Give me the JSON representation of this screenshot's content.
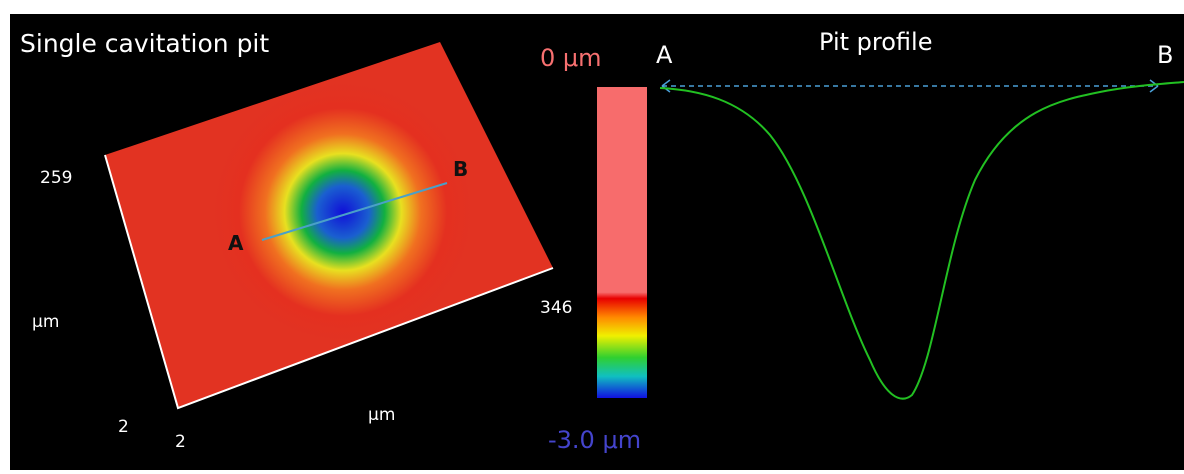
{
  "surface_panel": {
    "title": "Single cavitation pit",
    "y_max_label": "259",
    "y_unit": "μm",
    "y_min_label": "2",
    "x_min_label": "2",
    "x_unit": "μm",
    "x_max_label": "346",
    "point_a": "A",
    "point_b": "B"
  },
  "color_scale": {
    "top_label": "0 μm",
    "bottom_label": "-3.0 μm"
  },
  "profile_panel": {
    "title": "Pit profile",
    "start_label": "A",
    "end_label": "B"
  }
}
